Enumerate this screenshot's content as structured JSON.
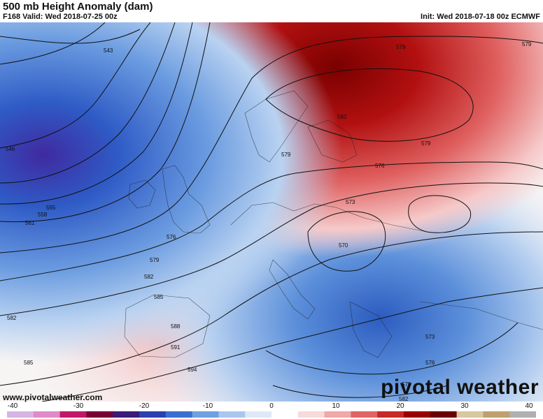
{
  "header": {
    "title": "500 mb Height Anomaly (dam)",
    "valid": "F168 Valid: Wed 2018-07-25 00z",
    "init": "Init: Wed 2018-07-18 00z ECMWF"
  },
  "watermark": {
    "site": "www.pivotalweather.com",
    "logo": "pivotal weather"
  },
  "colorbar": {
    "ticks": [
      "-40",
      "-30",
      "-20",
      "-10",
      "0",
      "10",
      "20",
      "30",
      "40"
    ],
    "colors": [
      "#d9b3e6",
      "#e08acb",
      "#c2186a",
      "#7a0033",
      "#3c1a78",
      "#2c3fb0",
      "#3a6fd0",
      "#6fa0e0",
      "#a9c7ee",
      "#dde9f7",
      "#ffffff",
      "#f7dada",
      "#f0a8a8",
      "#e06464",
      "#c82828",
      "#9a0000",
      "#6b0000",
      "#d8c8a0",
      "#c0a070",
      "#b0b0b0"
    ]
  },
  "contour_labels": [
    "543",
    "546",
    "555",
    "558",
    "561",
    "570",
    "573",
    "576",
    "579",
    "582",
    "585",
    "588",
    "591",
    "594"
  ]
}
